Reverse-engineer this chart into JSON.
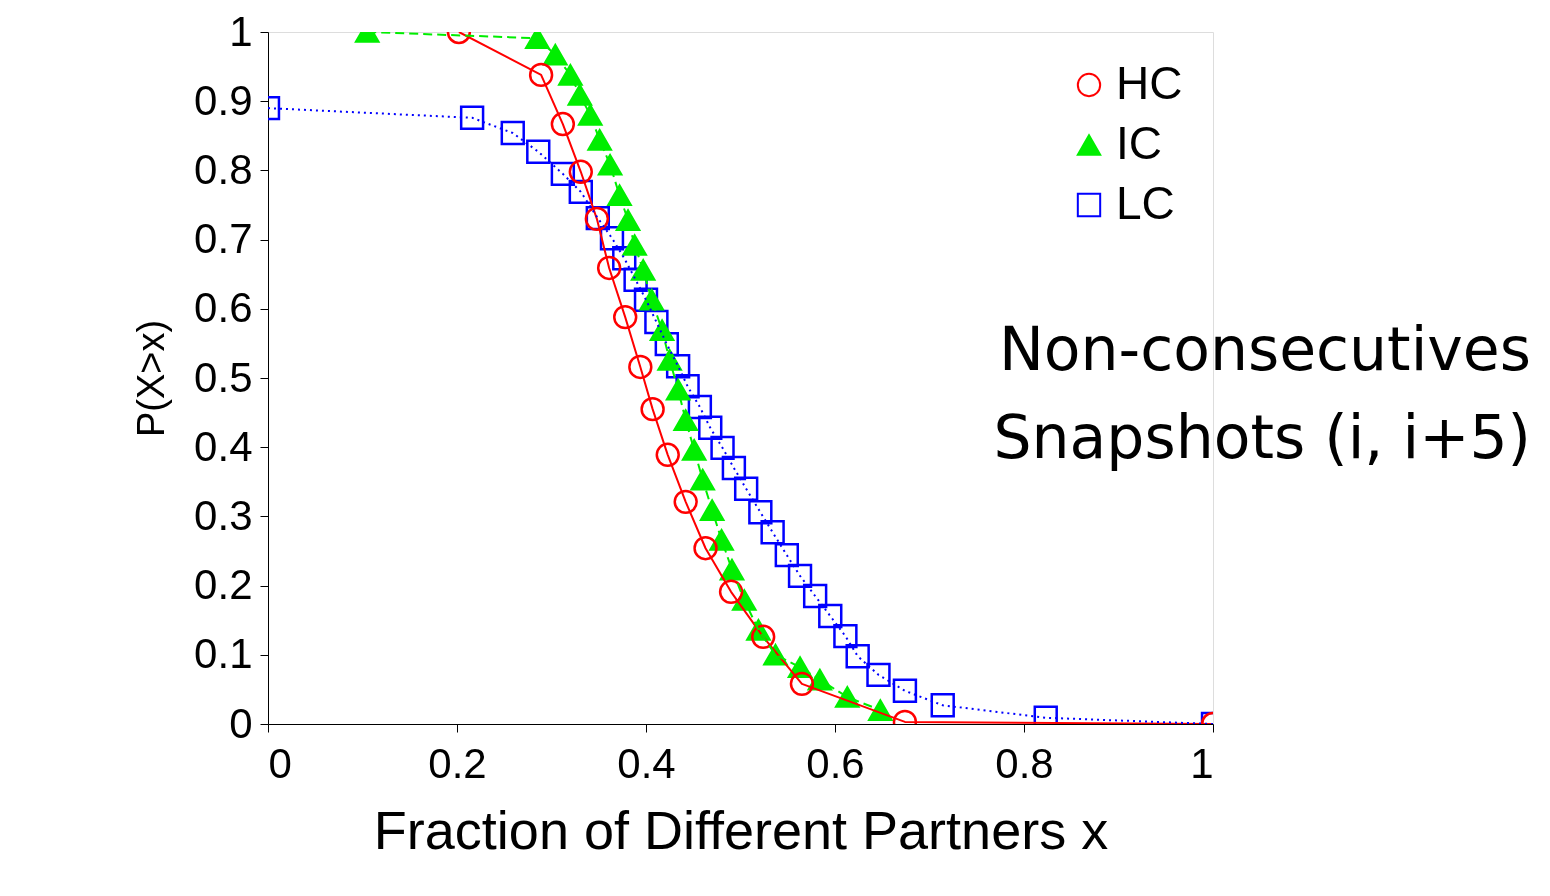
{
  "chart_data": {
    "type": "line",
    "xlabel": "Fraction of Different Partners x",
    "ylabel": "P(X>x)",
    "annotations": [
      "Non-consecutives",
      "Snapshots (i, i+5)"
    ],
    "xlim": [
      0,
      1
    ],
    "ylim": [
      0,
      1
    ],
    "xticks": [
      0,
      0.2,
      0.4,
      0.6,
      0.8,
      1
    ],
    "yticks": [
      0,
      0.1,
      0.2,
      0.3,
      0.4,
      0.5,
      0.6,
      0.7,
      0.8,
      0.9,
      1
    ],
    "grid": false,
    "legend": "top right",
    "series": [
      {
        "name": "HC",
        "color": "#ff0000",
        "marker": "circle",
        "line_style": "solid",
        "x": [
          0.202,
          0.289,
          0.312,
          0.331,
          0.348,
          0.361,
          0.378,
          0.394,
          0.407,
          0.423,
          0.442,
          0.463,
          0.49,
          0.524,
          0.565,
          0.674,
          1.0
        ],
        "values": [
          1.0,
          0.938,
          0.867,
          0.798,
          0.73,
          0.659,
          0.588,
          0.516,
          0.455,
          0.389,
          0.321,
          0.254,
          0.191,
          0.126,
          0.058,
          0.003,
          0.0
        ]
      },
      {
        "name": "IC",
        "color": "#00ee00",
        "marker": "triangle",
        "line_style": "dashed",
        "x": [
          0.105,
          0.285,
          0.304,
          0.32,
          0.33,
          0.341,
          0.351,
          0.362,
          0.372,
          0.381,
          0.388,
          0.397,
          0.406,
          0.417,
          0.425,
          0.434,
          0.442,
          0.451,
          0.46,
          0.47,
          0.48,
          0.491,
          0.504,
          0.519,
          0.537,
          0.563,
          0.584,
          0.613,
          0.648
        ],
        "values": [
          1.0,
          0.991,
          0.967,
          0.938,
          0.909,
          0.88,
          0.844,
          0.808,
          0.764,
          0.728,
          0.692,
          0.656,
          0.613,
          0.569,
          0.526,
          0.483,
          0.439,
          0.396,
          0.353,
          0.309,
          0.266,
          0.223,
          0.179,
          0.136,
          0.1,
          0.082,
          0.064,
          0.039,
          0.02
        ]
      },
      {
        "name": "LC",
        "color": "#0000ff",
        "marker": "square",
        "line_style": "dotted",
        "x": [
          0,
          0.216,
          0.259,
          0.286,
          0.312,
          0.331,
          0.349,
          0.364,
          0.377,
          0.389,
          0.4,
          0.411,
          0.422,
          0.434,
          0.444,
          0.457,
          0.468,
          0.481,
          0.493,
          0.506,
          0.521,
          0.534,
          0.549,
          0.563,
          0.579,
          0.595,
          0.611,
          0.624,
          0.646,
          0.674,
          0.714,
          0.823,
          1.0
        ],
        "values": [
          0.89,
          0.876,
          0.854,
          0.827,
          0.795,
          0.769,
          0.731,
          0.702,
          0.673,
          0.642,
          0.613,
          0.581,
          0.549,
          0.517,
          0.488,
          0.458,
          0.428,
          0.399,
          0.37,
          0.34,
          0.306,
          0.277,
          0.244,
          0.214,
          0.185,
          0.156,
          0.127,
          0.098,
          0.071,
          0.048,
          0.027,
          0.009,
          0.0
        ]
      }
    ]
  }
}
